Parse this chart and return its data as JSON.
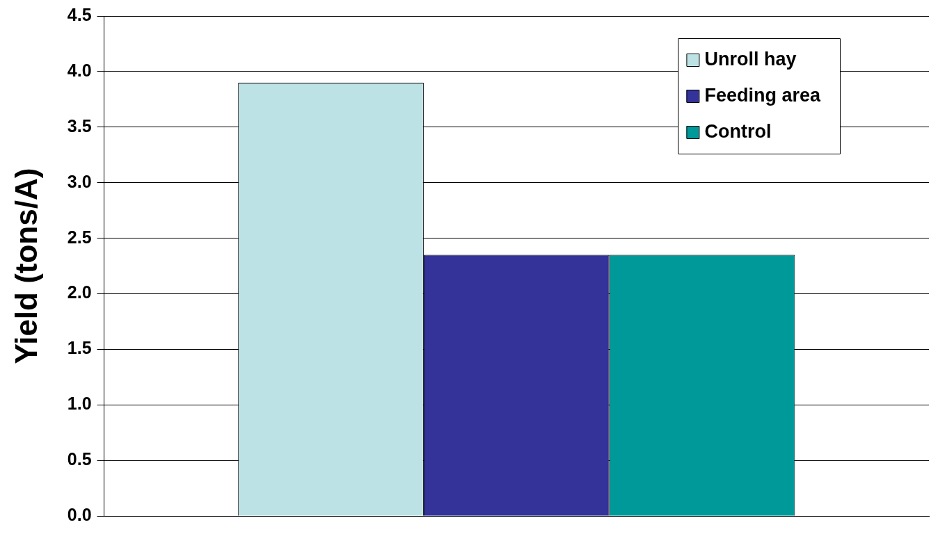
{
  "chart_data": {
    "type": "bar",
    "ylabel": "Yield (tons/A)",
    "categories": [
      null
    ],
    "series": [
      {
        "name": "Unroll hay",
        "color": "#bde2e5",
        "values": [
          3.9
        ]
      },
      {
        "name": "Feeding area",
        "color": "#333399",
        "values": [
          2.35
        ]
      },
      {
        "name": "Control",
        "color": "#009999",
        "values": [
          2.35
        ]
      }
    ],
    "ylim": [
      0,
      4.5
    ],
    "yticks": [
      {
        "value": 0,
        "label": "0.0"
      },
      {
        "value": 0.5,
        "label": "0.5"
      },
      {
        "value": 1,
        "label": "1.0"
      },
      {
        "value": 1.5,
        "label": "1.5"
      },
      {
        "value": 2,
        "label": "2.0"
      },
      {
        "value": 2.5,
        "label": "2.5"
      },
      {
        "value": 3,
        "label": "3.0"
      },
      {
        "value": 3.5,
        "label": "3.5"
      },
      {
        "value": 4,
        "label": "4.0"
      },
      {
        "value": 4.5,
        "label": "4.5"
      }
    ],
    "grid": "y",
    "legend": "top right"
  }
}
